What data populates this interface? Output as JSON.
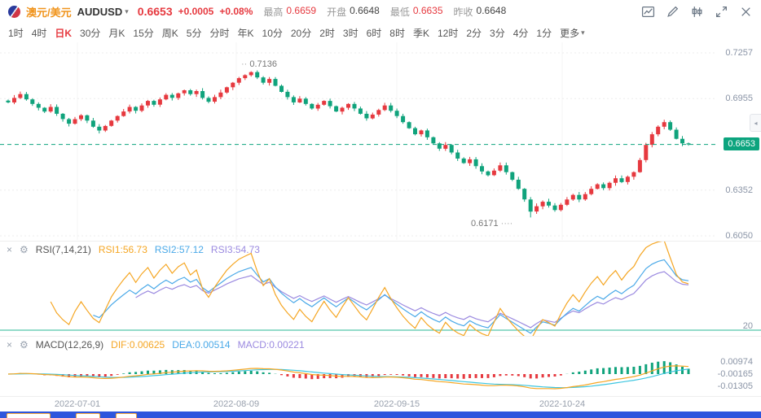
{
  "header": {
    "pair_name": "澳元/美元",
    "symbol": "AUDUSD",
    "price": "0.6653",
    "change": "+0.0005",
    "change_pct": "+0.08%",
    "stats": [
      {
        "label": "最高",
        "value": "0.6659"
      },
      {
        "label": "开盘",
        "value": "0.6648"
      },
      {
        "label": "最低",
        "value": "0.6635"
      },
      {
        "label": "昨收",
        "value": "0.6648"
      }
    ],
    "icons": [
      "kline-style-icon",
      "draw-tool-icon",
      "compare-icon",
      "fullscreen-icon",
      "close-chart-icon"
    ]
  },
  "toolbar": {
    "items": [
      "1时",
      "4时",
      "日K",
      "30分",
      "月K",
      "15分",
      "周K",
      "5分",
      "分时",
      "年K",
      "10分",
      "20分",
      "2时",
      "3时",
      "6时",
      "8时",
      "季K",
      "12时",
      "2分",
      "3分",
      "4分",
      "1分"
    ],
    "active": "日K",
    "more": "更多"
  },
  "main_chart": {
    "y_labels": [
      "0.7257",
      "0.6955",
      "0.6653",
      "0.6352",
      "0.6050"
    ],
    "current_price": "0.6653",
    "high_label": "0.7136",
    "low_label": "0.6171"
  },
  "rsi_panel": {
    "close_icon": "×",
    "settings_icon": "⚙",
    "title": "RSI(7,14,21)",
    "labels": [
      "RSI1:56.73",
      "RSI2:57.12",
      "RSI3:54.73"
    ],
    "level_label": "20"
  },
  "macd_panel": {
    "close_icon": "×",
    "settings_icon": "⚙",
    "title": "MACD(12,26,9)",
    "labels": [
      "DIF:0.00625",
      "DEA:0.00514",
      "MACD:0.00221"
    ],
    "y_labels": [
      "0.00974",
      "-0.00165",
      "-0.01305"
    ]
  },
  "x_axis": {
    "labels": [
      "2022-07-01",
      "2022-08-09",
      "2022-09-15",
      "2022-10-24"
    ]
  },
  "chart_data": {
    "type": "candlestick",
    "symbol": "AUDUSD",
    "timeframe": "日K",
    "main": {
      "ylim": [
        0.605,
        0.7257
      ],
      "yticks": [
        0.7257,
        0.6955,
        0.6653,
        0.6352,
        0.605
      ],
      "current": 0.6653,
      "up_color": "#e6393f",
      "down_color": "#10a37c",
      "high_annotation": {
        "index": 40,
        "value": 0.7136
      },
      "low_annotation": {
        "index": 86,
        "value": 0.6171
      },
      "closes": [
        0.693,
        0.696,
        0.6985,
        0.695,
        0.692,
        0.6895,
        0.687,
        0.69,
        0.6855,
        0.682,
        0.679,
        0.682,
        0.6845,
        0.681,
        0.677,
        0.6745,
        0.6775,
        0.681,
        0.684,
        0.687,
        0.69,
        0.6875,
        0.691,
        0.694,
        0.6915,
        0.695,
        0.698,
        0.696,
        0.699,
        0.701,
        0.6985,
        0.7005,
        0.696,
        0.6935,
        0.6965,
        0.6995,
        0.703,
        0.706,
        0.709,
        0.711,
        0.713,
        0.7095,
        0.706,
        0.7085,
        0.704,
        0.7,
        0.6965,
        0.693,
        0.6955,
        0.692,
        0.689,
        0.6915,
        0.694,
        0.6905,
        0.687,
        0.6895,
        0.692,
        0.689,
        0.6855,
        0.6825,
        0.685,
        0.688,
        0.691,
        0.6875,
        0.684,
        0.68,
        0.676,
        0.672,
        0.6745,
        0.67,
        0.666,
        0.6625,
        0.665,
        0.66,
        0.656,
        0.653,
        0.6555,
        0.651,
        0.6475,
        0.645,
        0.648,
        0.6515,
        0.647,
        0.642,
        0.636,
        0.629,
        0.621,
        0.6245,
        0.6275,
        0.625,
        0.622,
        0.6255,
        0.629,
        0.632,
        0.629,
        0.6325,
        0.636,
        0.639,
        0.6365,
        0.64,
        0.643,
        0.6405,
        0.644,
        0.647,
        0.655,
        0.665,
        0.672,
        0.677,
        0.68,
        0.675,
        0.669,
        0.666,
        0.6653
      ]
    },
    "rsi": {
      "periods": [
        7,
        14,
        21
      ],
      "current_values": [
        56.73,
        57.12,
        54.73
      ],
      "colors": [
        "#f5a623",
        "#4aa9e8",
        "#9b8ae0"
      ],
      "level_line": 20,
      "level_color": "#27b795"
    },
    "macd": {
      "params": [
        12,
        26,
        9
      ],
      "dif": 0.00625,
      "dea": 0.00514,
      "macd": 0.00221,
      "yticks": [
        0.00974,
        -0.00165,
        -0.01305
      ],
      "dif_color": "#f5a623",
      "dea_color": "#3ec6e0",
      "pos_color": "#10a37c",
      "neg_color": "#e6393f"
    },
    "x_dates": [
      "2022-07-01",
      "2022-08-09",
      "2022-09-15",
      "2022-10-24"
    ]
  }
}
